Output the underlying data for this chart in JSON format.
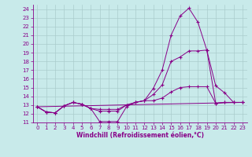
{
  "xlabel": "Windchill (Refroidissement éolien,°C)",
  "bg_color": "#c8eaea",
  "line_color": "#880088",
  "grid_color": "#aacccc",
  "xlim": [
    -0.5,
    23.5
  ],
  "ylim": [
    11,
    24.5
  ],
  "yticks": [
    11,
    12,
    13,
    14,
    15,
    16,
    17,
    18,
    19,
    20,
    21,
    22,
    23,
    24
  ],
  "xticks": [
    0,
    1,
    2,
    3,
    4,
    5,
    6,
    7,
    8,
    9,
    10,
    11,
    12,
    13,
    14,
    15,
    16,
    17,
    18,
    19,
    20,
    21,
    22,
    23
  ],
  "lines": [
    {
      "x": [
        0,
        1,
        2,
        3,
        4,
        5,
        6,
        7,
        8,
        9,
        10,
        11,
        12,
        13,
        14,
        15,
        16,
        17,
        18,
        19,
        20,
        21,
        22,
        23
      ],
      "y": [
        12.8,
        12.2,
        12.1,
        12.9,
        13.3,
        13.1,
        12.6,
        11.1,
        11.1,
        11.1,
        12.8,
        13.3,
        13.5,
        14.9,
        17.0,
        21.0,
        23.2,
        24.1,
        22.5,
        19.3,
        13.2,
        13.3,
        13.3,
        13.3
      ],
      "marker": true
    },
    {
      "x": [
        0,
        1,
        2,
        3,
        4,
        5,
        6,
        7,
        8,
        9,
        10,
        11,
        12,
        13,
        14,
        15,
        16,
        17,
        18,
        19,
        20,
        21,
        22,
        23
      ],
      "y": [
        12.8,
        12.2,
        12.1,
        12.9,
        13.3,
        13.1,
        12.6,
        12.3,
        12.3,
        12.3,
        13.0,
        13.3,
        13.5,
        14.2,
        15.3,
        18.0,
        18.5,
        19.2,
        19.2,
        19.3,
        15.2,
        14.4,
        13.3,
        13.3
      ],
      "marker": true
    },
    {
      "x": [
        0,
        23
      ],
      "y": [
        12.8,
        13.3
      ],
      "marker": false
    },
    {
      "x": [
        0,
        1,
        2,
        3,
        4,
        5,
        6,
        7,
        8,
        9,
        10,
        11,
        12,
        13,
        14,
        15,
        16,
        17,
        18,
        19,
        20,
        21,
        22,
        23
      ],
      "y": [
        12.8,
        12.2,
        12.1,
        12.9,
        13.3,
        13.1,
        12.6,
        12.5,
        12.5,
        12.5,
        13.0,
        13.3,
        13.5,
        13.5,
        13.8,
        14.5,
        15.0,
        15.1,
        15.1,
        15.1,
        13.2,
        13.3,
        13.3,
        13.3
      ],
      "marker": true
    }
  ]
}
